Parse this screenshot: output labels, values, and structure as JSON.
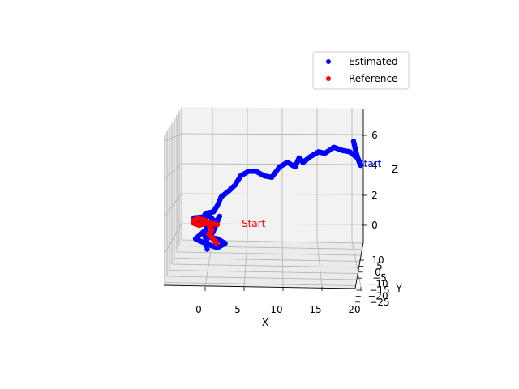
{
  "chart_data": {
    "type": "scatter",
    "projection": "3d",
    "title": "",
    "xlabel": "X",
    "ylabel": "Y",
    "zlabel": "Z",
    "x_ticks": [
      "0",
      "5",
      "10",
      "15",
      "20"
    ],
    "y_ticks": [
      "10",
      "5",
      "0",
      "−5",
      "−10",
      "−15",
      "−20",
      "−25"
    ],
    "z_ticks": [
      "0",
      "2",
      "4",
      "6"
    ],
    "grid": true,
    "legend_position": "top-right",
    "series": [
      {
        "name": "Estimated",
        "color": "#0000ff",
        "points": [
          [
            20.0,
            0,
            5.6
          ],
          [
            20.3,
            0,
            4.9
          ],
          [
            20.6,
            0,
            4.4
          ],
          [
            20.9,
            0,
            4.0
          ],
          [
            20.5,
            0,
            4.5
          ],
          [
            19.5,
            0,
            4.9
          ],
          [
            18.5,
            0,
            5.0
          ],
          [
            17.5,
            0,
            5.2
          ],
          [
            16.3,
            0,
            4.8
          ],
          [
            15.5,
            0,
            4.9
          ],
          [
            14.5,
            0,
            4.6
          ],
          [
            13.5,
            0,
            4.2
          ],
          [
            13.0,
            0,
            4.5
          ],
          [
            12.5,
            0,
            3.9
          ],
          [
            11.5,
            0,
            4.2
          ],
          [
            10.5,
            0,
            3.9
          ],
          [
            9.5,
            0,
            3.2
          ],
          [
            8.5,
            0,
            3.3
          ],
          [
            7.5,
            0,
            3.6
          ],
          [
            6.5,
            0,
            3.6
          ],
          [
            5.5,
            0,
            3.3
          ],
          [
            4.8,
            0,
            2.7
          ],
          [
            4.0,
            0,
            2.3
          ],
          [
            3.0,
            0,
            1.9
          ],
          [
            2.5,
            0,
            1.3
          ],
          [
            2.0,
            0,
            0.9
          ],
          [
            1.0,
            0,
            0.8
          ],
          [
            0.5,
            0,
            0.3
          ],
          [
            0.0,
            0,
            0.1
          ],
          [
            -0.5,
            0,
            0.5
          ],
          [
            1.5,
            0,
            0.6
          ],
          [
            2.3,
            0,
            0.2
          ],
          [
            2.8,
            0,
            0.6
          ],
          [
            2.0,
            0,
            -0.4
          ],
          [
            1.5,
            0,
            -0.8
          ],
          [
            2.5,
            0,
            -0.9
          ],
          [
            3.5,
            0,
            -1.2
          ],
          [
            2.5,
            0,
            -1.5
          ],
          [
            1.5,
            0,
            -1.3
          ],
          [
            0.5,
            0,
            -1.1
          ],
          [
            -0.3,
            0,
            -0.9
          ],
          [
            0.8,
            0,
            -0.4
          ],
          [
            1.2,
            0,
            -1.6
          ],
          [
            1.0,
            0,
            0.0
          ]
        ]
      },
      {
        "name": "Reference",
        "color": "#ff0000",
        "points": [
          [
            2.5,
            0,
            0.05
          ],
          [
            1.5,
            0,
            0.15
          ],
          [
            0.8,
            0,
            0.35
          ],
          [
            0.0,
            0,
            0.45
          ],
          [
            -0.5,
            0,
            0.35
          ],
          [
            -0.6,
            0,
            0.15
          ],
          [
            0.2,
            0,
            0.0
          ],
          [
            1.2,
            0,
            0.2
          ],
          [
            1.8,
            0,
            -0.3
          ],
          [
            1.4,
            0,
            -0.6
          ],
          [
            1.8,
            0,
            -0.8
          ],
          [
            2.4,
            0,
            -1.2
          ]
        ]
      }
    ],
    "annotations": [
      {
        "text": "Start",
        "series": "Estimated",
        "color": "#0000ff",
        "at": [
          20.9,
          0,
          4.0
        ]
      },
      {
        "text": "Start",
        "series": "Reference",
        "color": "#ff0000",
        "at": [
          2.5,
          0,
          0.05
        ]
      }
    ]
  }
}
